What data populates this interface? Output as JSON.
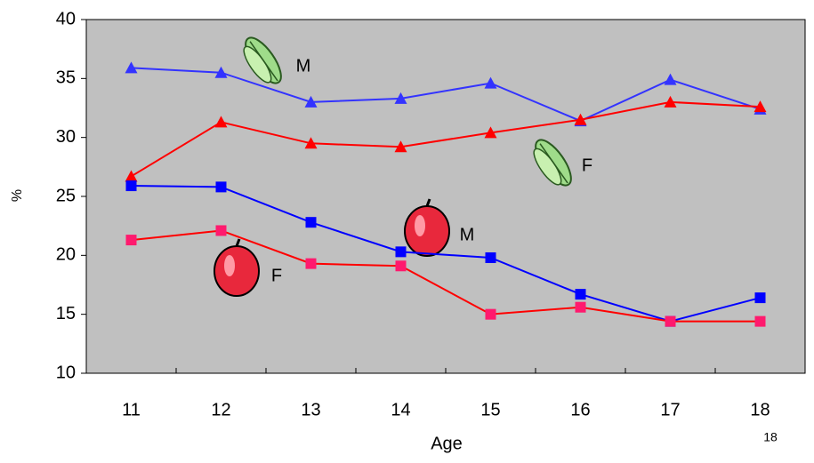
{
  "chart_data": {
    "type": "line",
    "x_label": "Age",
    "y_label": "%",
    "categories": [
      "11",
      "12",
      "13",
      "14",
      "15",
      "16",
      "17",
      "18"
    ],
    "series": [
      {
        "color": "#3333ff",
        "marker": "triangle",
        "marker_color": "#3333ff",
        "values": [
          35.9,
          35.5,
          33.0,
          33.3,
          34.6,
          31.4,
          34.9,
          32.4
        ]
      },
      {
        "color": "#ff0000",
        "marker": "triangle",
        "marker_color": "#ff0000",
        "values": [
          26.7,
          31.3,
          29.5,
          29.2,
          30.4,
          31.5,
          33.0,
          32.6
        ]
      },
      {
        "color": "#0000ff",
        "marker": "square",
        "marker_color": "#0000ff",
        "values": [
          25.9,
          25.8,
          22.8,
          20.3,
          19.8,
          16.7,
          14.4,
          16.4
        ]
      },
      {
        "color": "#ff0000",
        "marker": "square",
        "marker_color": "#ff1a6e",
        "values": [
          21.3,
          22.1,
          19.3,
          19.1,
          15.0,
          15.6,
          14.4,
          14.4
        ]
      }
    ],
    "annotations": [
      "M",
      "F",
      "M",
      "F"
    ],
    "ylim": [
      10,
      40
    ],
    "yticks": [
      10,
      15,
      20,
      25,
      30,
      35,
      40
    ],
    "grid": false,
    "plot_background": "#c0c0c0"
  },
  "page_number": "18"
}
